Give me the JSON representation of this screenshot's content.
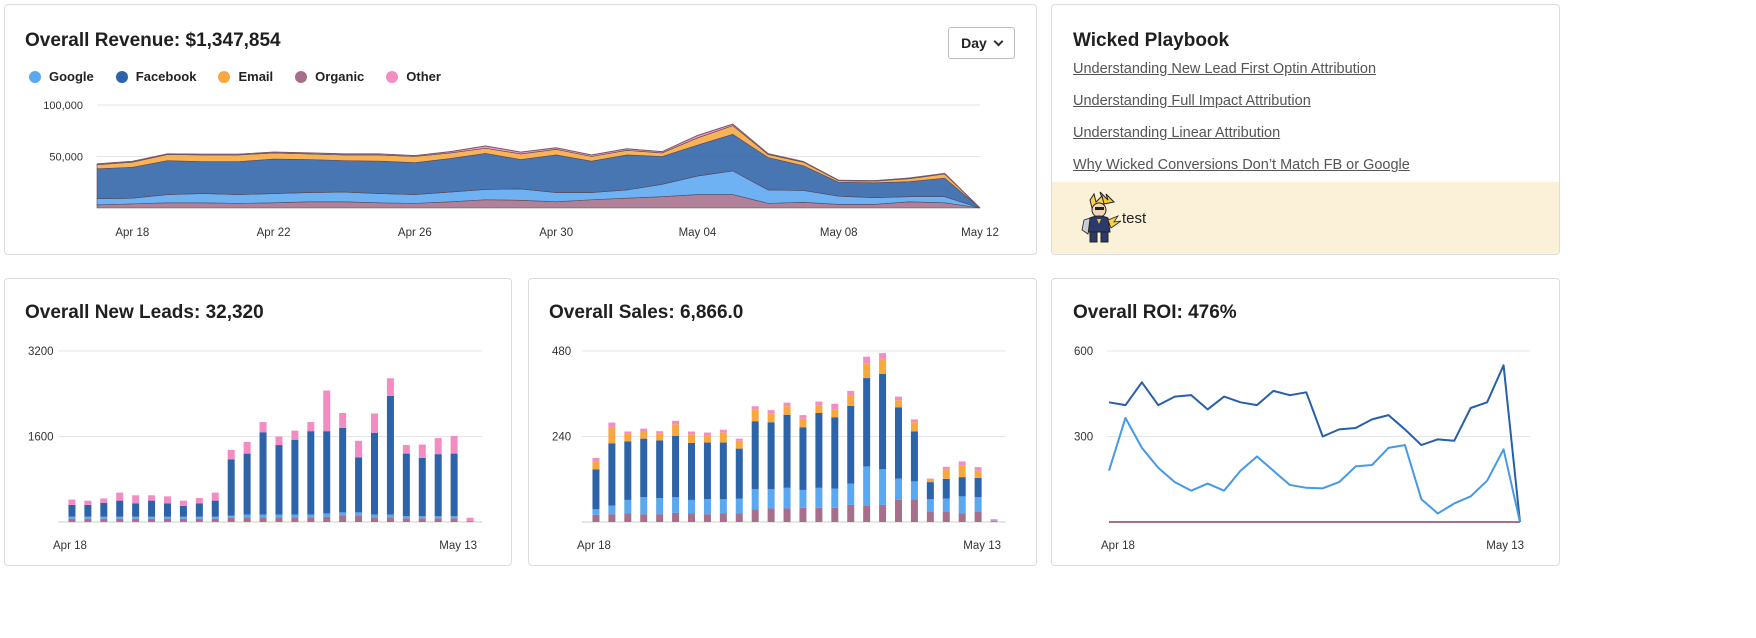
{
  "colors": {
    "google": "#5aa7f2",
    "facebook": "#2d63a8",
    "email": "#f7a940",
    "organic": "#a6708b",
    "other": "#f48cc4",
    "roi_line_dark": "#285fa8",
    "roi_line_light": "#4599e6",
    "grid": "#e6e6e6",
    "playbook_bg": "#fbf1d9"
  },
  "revenue": {
    "title": "Overall Revenue: $1,347,854",
    "period_button": "Day",
    "legend": [
      {
        "label": "Google",
        "color": "#5aa7f2"
      },
      {
        "label": "Facebook",
        "color": "#2d63a8"
      },
      {
        "label": "Email",
        "color": "#f7a940"
      },
      {
        "label": "Organic",
        "color": "#a6708b"
      },
      {
        "label": "Other",
        "color": "#f48cc4"
      }
    ]
  },
  "playbook": {
    "title": "Wicked Playbook",
    "links": [
      "Understanding New Lead First Optin Attribution",
      "Understanding Full Impact Attribution",
      "Understanding Linear Attribution",
      "Why Wicked Conversions Don’t Match FB or Google"
    ],
    "mascot_icon": "lightning-hero-mascot-icon",
    "footer_label": "test"
  },
  "leads": {
    "title": "Overall New Leads: 32,320"
  },
  "sales": {
    "title": "Overall Sales: 6,866.0"
  },
  "roi": {
    "title": "Overall ROI: 476%"
  },
  "chart_data": [
    {
      "id": "revenue",
      "type": "area",
      "stacked": true,
      "x": [
        "Apr 17",
        "Apr 18",
        "Apr 19",
        "Apr 20",
        "Apr 21",
        "Apr 22",
        "Apr 23",
        "Apr 24",
        "Apr 25",
        "Apr 26",
        "Apr 27",
        "Apr 28",
        "Apr 29",
        "Apr 30",
        "May 01",
        "May 02",
        "May 03",
        "May 04",
        "May 05",
        "May 06",
        "May 07",
        "May 08",
        "May 09",
        "May 10",
        "May 11",
        "May 12"
      ],
      "x_tick_labels": [
        "Apr 18",
        "Apr 22",
        "Apr 26",
        "Apr 30",
        "May 04",
        "May 08",
        "May 12"
      ],
      "y_ticks": [
        {
          "value": 50000,
          "label": "50,000"
        },
        {
          "value": 100000,
          "label": "100,000"
        }
      ],
      "ylim": [
        0,
        100000
      ],
      "grid": true,
      "series": [
        {
          "name": "Organic",
          "values": [
            3000,
            4000,
            5000,
            5000,
            4500,
            5000,
            6000,
            6000,
            5000,
            4500,
            6000,
            8000,
            7500,
            6000,
            8000,
            9500,
            11000,
            13000,
            13000,
            4500,
            5500,
            3500,
            3500,
            6000,
            5000,
            0
          ]
        },
        {
          "name": "Google",
          "values": [
            6000,
            5500,
            8000,
            9000,
            8500,
            9000,
            9000,
            9500,
            9000,
            8500,
            9500,
            10000,
            11000,
            9000,
            7000,
            8000,
            12000,
            18000,
            23000,
            13000,
            11500,
            8000,
            6500,
            5000,
            6000,
            0
          ]
        },
        {
          "name": "Facebook",
          "values": [
            29000,
            30000,
            33000,
            31000,
            32000,
            33500,
            32000,
            30500,
            31500,
            31000,
            32500,
            35000,
            28500,
            36500,
            30500,
            34000,
            27000,
            30000,
            35500,
            31500,
            24000,
            13500,
            14500,
            14500,
            18000,
            0
          ]
        },
        {
          "name": "Email",
          "values": [
            4000,
            5000,
            6000,
            6500,
            6500,
            6000,
            5500,
            5500,
            6000,
            6000,
            5500,
            5000,
            5500,
            5500,
            4500,
            4500,
            3500,
            7000,
            8500,
            3000,
            3500,
            1500,
            1500,
            3000,
            4000,
            0
          ]
        },
        {
          "name": "Other",
          "values": [
            800,
            800,
            600,
            700,
            700,
            800,
            1000,
            1000,
            1000,
            800,
            1200,
            2200,
            1800,
            1500,
            1500,
            1500,
            1200,
            2400,
            1500,
            800,
            600,
            400,
            500,
            600,
            600,
            0
          ]
        }
      ]
    },
    {
      "id": "leads",
      "type": "bar",
      "stacked": true,
      "x_tick_labels": [
        "Apr 18",
        "May 13"
      ],
      "y_ticks": [
        {
          "value": 1600,
          "label": "1600"
        },
        {
          "value": 3200,
          "label": "3200"
        }
      ],
      "ylim": [
        0,
        3200
      ],
      "grid": true,
      "series": [
        {
          "name": "Organic",
          "values": [
            60,
            60,
            60,
            60,
            60,
            60,
            60,
            60,
            60,
            60,
            80,
            90,
            90,
            90,
            90,
            90,
            100,
            120,
            120,
            90,
            90,
            70,
            70,
            70,
            70,
            10
          ]
        },
        {
          "name": "Google",
          "values": [
            40,
            40,
            40,
            40,
            40,
            40,
            40,
            40,
            40,
            40,
            40,
            50,
            50,
            50,
            50,
            50,
            60,
            60,
            60,
            50,
            50,
            40,
            40,
            40,
            40,
            10
          ]
        },
        {
          "name": "Facebook",
          "values": [
            220,
            220,
            260,
            300,
            250,
            300,
            250,
            200,
            250,
            300,
            1050,
            1140,
            1540,
            1300,
            1400,
            1560,
            1540,
            1580,
            1030,
            1530,
            2220,
            1170,
            1090,
            1160,
            1170,
            0
          ]
        },
        {
          "name": "Email",
          "values": [
            0,
            0,
            0,
            0,
            0,
            0,
            0,
            0,
            0,
            0,
            0,
            0,
            0,
            0,
            0,
            0,
            0,
            0,
            0,
            0,
            0,
            0,
            0,
            0,
            0,
            0
          ]
        },
        {
          "name": "Other",
          "values": [
            100,
            80,
            80,
            150,
            150,
            100,
            130,
            100,
            100,
            150,
            180,
            220,
            190,
            160,
            170,
            170,
            760,
            280,
            310,
            360,
            330,
            160,
            250,
            300,
            330,
            60
          ]
        }
      ]
    },
    {
      "id": "sales",
      "type": "bar",
      "stacked": true,
      "x_tick_labels": [
        "Apr 18",
        "May 13"
      ],
      "y_ticks": [
        {
          "value": 240,
          "label": "240"
        },
        {
          "value": 480,
          "label": "480"
        }
      ],
      "ylim": [
        0,
        480
      ],
      "grid": true,
      "series": [
        {
          "name": "Organic",
          "values": [
            20,
            22,
            24,
            22,
            22,
            26,
            24,
            22,
            24,
            24,
            36,
            38,
            38,
            40,
            40,
            40,
            48,
            46,
            48,
            62,
            64,
            30,
            30,
            24,
            30,
            2
          ]
        },
        {
          "name": "Google",
          "values": [
            16,
            24,
            38,
            48,
            45,
            44,
            38,
            42,
            40,
            42,
            56,
            54,
            58,
            50,
            56,
            54,
            60,
            110,
            100,
            60,
            50,
            34,
            36,
            48,
            40,
            2
          ]
        },
        {
          "name": "Facebook",
          "values": [
            112,
            175,
            164,
            164,
            162,
            172,
            160,
            159,
            159,
            140,
            191,
            188,
            205,
            176,
            210,
            200,
            218,
            248,
            268,
            200,
            140,
            48,
            55,
            54,
            54,
            0
          ]
        },
        {
          "name": "Email",
          "values": [
            22,
            46,
            22,
            20,
            20,
            32,
            24,
            20,
            28,
            22,
            32,
            24,
            24,
            24,
            22,
            22,
            28,
            42,
            42,
            20,
            26,
            6,
            28,
            32,
            20,
            0
          ]
        },
        {
          "name": "Other",
          "values": [
            10,
            12,
            6,
            8,
            6,
            10,
            8,
            8,
            8,
            6,
            10,
            10,
            10,
            10,
            10,
            16,
            14,
            18,
            16,
            10,
            8,
            4,
            6,
            12,
            10,
            4
          ]
        }
      ]
    },
    {
      "id": "roi",
      "type": "line",
      "x_tick_labels": [
        "Apr 18",
        "May 13"
      ],
      "y_ticks": [
        {
          "value": 300,
          "label": "300"
        },
        {
          "value": 600,
          "label": "600"
        }
      ],
      "ylim": [
        0,
        600
      ],
      "grid": true,
      "series": [
        {
          "name": "Facebook",
          "values": [
            420,
            410,
            490,
            410,
            440,
            445,
            395,
            440,
            420,
            410,
            460,
            445,
            455,
            300,
            325,
            330,
            360,
            375,
            325,
            270,
            290,
            285,
            400,
            420,
            550,
            0
          ]
        },
        {
          "name": "Google",
          "values": [
            180,
            365,
            260,
            190,
            140,
            110,
            135,
            110,
            180,
            230,
            180,
            130,
            120,
            118,
            140,
            195,
            200,
            260,
            270,
            80,
            30,
            65,
            90,
            145,
            255,
            0
          ]
        },
        {
          "name": "Organic",
          "values": [
            0,
            0,
            0,
            0,
            0,
            0,
            0,
            0,
            0,
            0,
            0,
            0,
            0,
            0,
            0,
            0,
            0,
            0,
            0,
            0,
            0,
            0,
            0,
            0,
            0,
            0
          ]
        }
      ]
    }
  ]
}
